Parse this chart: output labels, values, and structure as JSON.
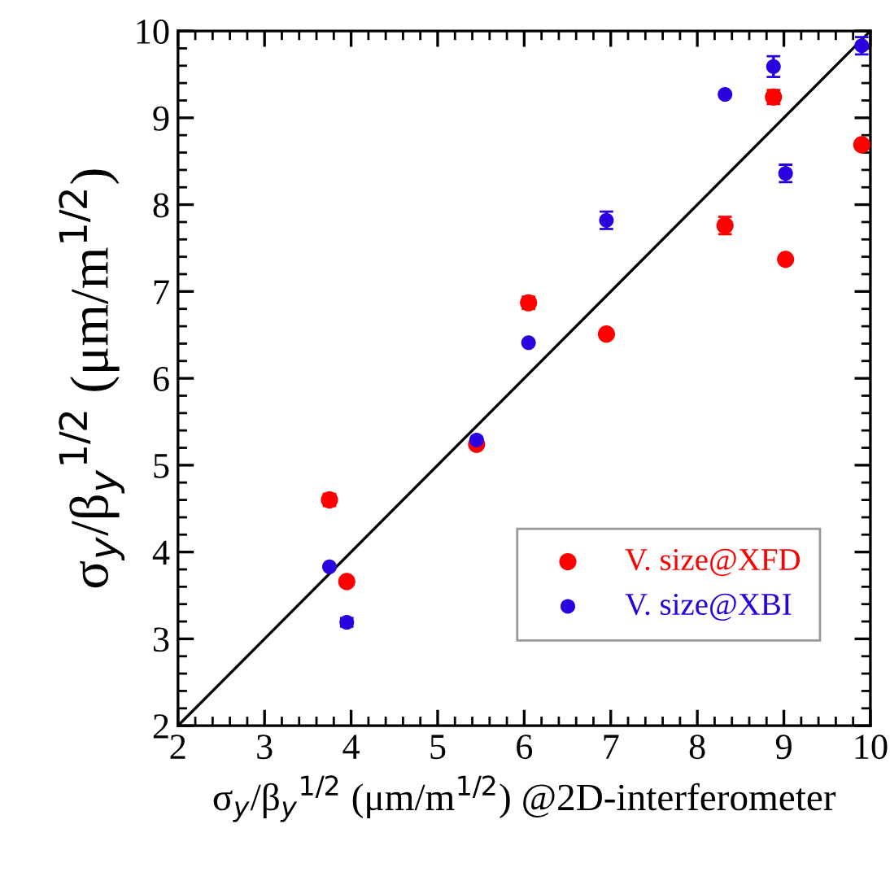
{
  "chart_data": {
    "type": "scatter",
    "xlabel": "σ$_{y}$/β$_{y}$$^{1/2}$ (μm/m$^{1/2}$) @2D-interferometer",
    "ylabel": "σ$_{y}$/β$_{y}$$^{1/2}$ (μm/m$^{1/2}$)",
    "xlim": [
      2,
      10
    ],
    "ylim": [
      2,
      10
    ],
    "xticks": [
      2,
      3,
      4,
      5,
      6,
      7,
      8,
      9,
      10
    ],
    "yticks": [
      2,
      3,
      4,
      5,
      6,
      7,
      8,
      9,
      10
    ],
    "grid": false,
    "legend": "bottom right",
    "series": [
      {
        "name": "V. size@XFD",
        "color": "#ff0000",
        "marker": "circle",
        "x": [
          3.75,
          3.95,
          5.45,
          6.05,
          6.95,
          8.32,
          8.88,
          9.02,
          9.9
        ],
        "values": [
          4.6,
          3.66,
          5.24,
          6.87,
          6.51,
          7.76,
          9.24,
          7.37,
          8.69
        ],
        "errors": [
          0.07,
          null,
          null,
          0.07,
          null,
          0.1,
          0.08,
          null,
          null
        ]
      },
      {
        "name": "V. size@XBI",
        "color": "#2a00e0",
        "marker": "circle",
        "x": [
          3.75,
          3.95,
          5.45,
          6.05,
          6.95,
          8.32,
          8.88,
          9.02,
          9.9
        ],
        "values": [
          3.83,
          3.19,
          5.29,
          6.41,
          7.82,
          9.27,
          9.59,
          8.36,
          9.83
        ],
        "errors": [
          null,
          0.05,
          null,
          null,
          0.1,
          null,
          0.12,
          0.1,
          0.1
        ]
      },
      {
        "type": "line",
        "color": "#000000",
        "marker": "none",
        "x": [
          2,
          10
        ],
        "values": [
          2,
          10
        ]
      }
    ]
  }
}
